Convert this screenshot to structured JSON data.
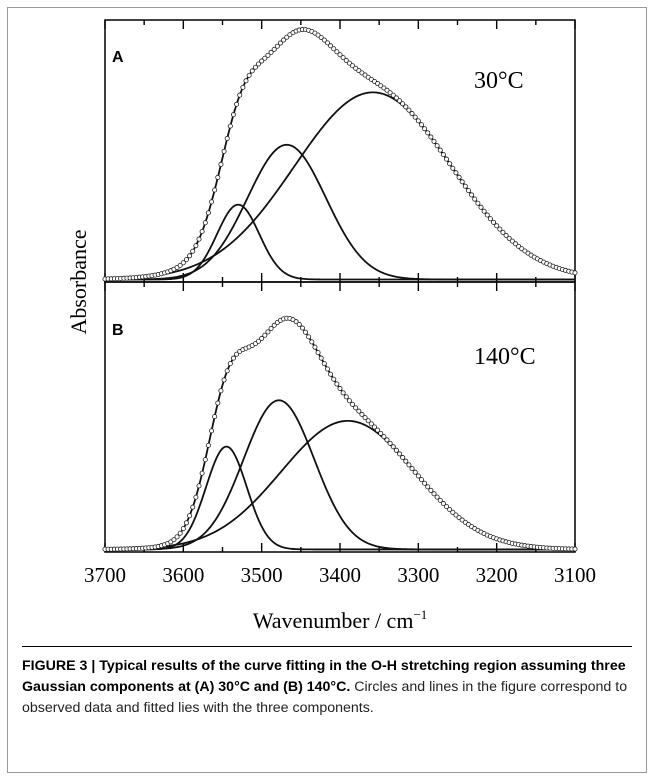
{
  "caption": {
    "bold": "FIGURE 3 | Typical results of the curve fitting in the O-H stretching region assuming three Gaussian components at (A) 30°C and (B) 140°C.",
    "text": " Circles and lines in the figure correspond to observed data and fitted lies with the three components."
  },
  "chart_data": [
    {
      "type": "line",
      "panel": "A",
      "annotation": "30°C",
      "xlabel": "Wavenumber / cm",
      "xlabel_superscript": "−1",
      "ylabel": "Absorbance",
      "xlim": [
        3700,
        3100
      ],
      "x_reversed": true,
      "x_ticks": [
        3700,
        3600,
        3500,
        3400,
        3300,
        3200,
        3100
      ],
      "ylim": [
        0,
        1.05
      ],
      "y_ticks_labeled": false,
      "baseline": 0.01,
      "components": [
        {
          "type": "gaussian",
          "center": 3530,
          "height": 0.3,
          "sigma": 27
        },
        {
          "type": "gaussian",
          "center": 3468,
          "height": 0.54,
          "sigma": 50
        },
        {
          "type": "gaussian",
          "center": 3358,
          "height": 0.75,
          "sigma": 100
        }
      ],
      "series": [
        {
          "style": "open-circles",
          "x_step": 4,
          "role": "observed"
        },
        {
          "style": "line",
          "role": "fit-sum"
        },
        {
          "style": "line",
          "role": "components"
        }
      ]
    },
    {
      "type": "line",
      "panel": "B",
      "annotation": "140°C",
      "xlabel": "Wavenumber / cm",
      "xlabel_superscript": "−1",
      "ylabel": "Absorbance",
      "xlim": [
        3700,
        3100
      ],
      "x_reversed": true,
      "x_ticks": [
        3700,
        3600,
        3500,
        3400,
        3300,
        3200,
        3100
      ],
      "x_tick_labels": [
        "3700",
        "3600",
        "3500",
        "3400",
        "3300",
        "3200",
        "3100"
      ],
      "ylim": [
        0,
        1.05
      ],
      "y_ticks_labeled": false,
      "baseline": 0.01,
      "components": [
        {
          "type": "gaussian",
          "center": 3545,
          "height": 0.4,
          "sigma": 26
        },
        {
          "type": "gaussian",
          "center": 3478,
          "height": 0.58,
          "sigma": 45
        },
        {
          "type": "gaussian",
          "center": 3390,
          "height": 0.5,
          "sigma": 85
        }
      ],
      "series": [
        {
          "style": "open-circles",
          "x_step": 4,
          "role": "observed"
        },
        {
          "style": "line",
          "role": "fit-sum"
        },
        {
          "style": "line",
          "role": "components"
        }
      ]
    }
  ]
}
